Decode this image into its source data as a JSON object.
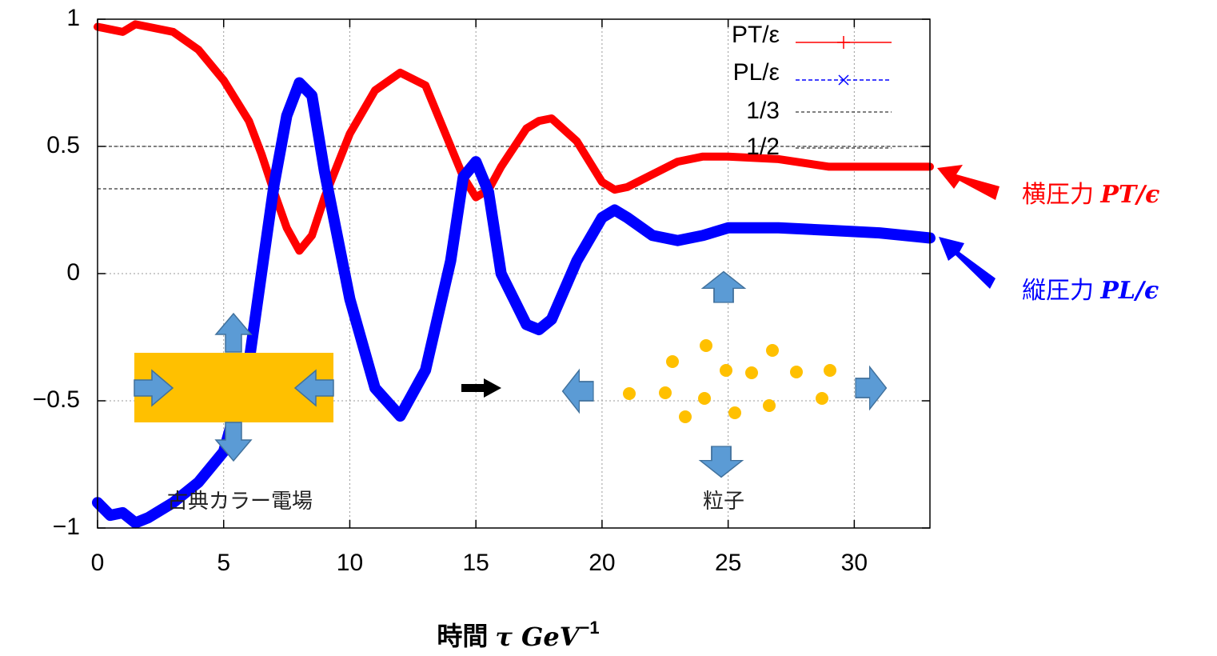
{
  "chart_data": {
    "type": "line",
    "x": [
      0,
      0.5,
      1,
      1.5,
      2,
      3,
      4,
      5,
      6,
      6.5,
      7,
      7.5,
      8,
      8.5,
      9,
      10,
      11,
      12,
      13,
      14,
      14.5,
      15,
      15.5,
      16,
      17,
      17.5,
      18,
      19,
      20,
      20.5,
      21,
      22,
      23,
      24,
      25,
      27,
      29,
      31,
      33
    ],
    "series": [
      {
        "name": "PT/ε",
        "color": "#ff0000",
        "values": [
          0.97,
          0.96,
          0.95,
          0.98,
          0.97,
          0.95,
          0.88,
          0.76,
          0.6,
          0.47,
          0.32,
          0.18,
          0.09,
          0.15,
          0.3,
          0.55,
          0.72,
          0.79,
          0.74,
          0.5,
          0.38,
          0.3,
          0.33,
          0.42,
          0.57,
          0.6,
          0.61,
          0.52,
          0.36,
          0.33,
          0.34,
          0.39,
          0.44,
          0.46,
          0.46,
          0.45,
          0.42,
          0.42,
          0.42
        ]
      },
      {
        "name": "PL/ε",
        "color": "#0000ff",
        "values": [
          -0.9,
          -0.95,
          -0.94,
          -0.98,
          -0.96,
          -0.9,
          -0.82,
          -0.7,
          -0.35,
          0.0,
          0.35,
          0.62,
          0.75,
          0.7,
          0.4,
          -0.1,
          -0.45,
          -0.56,
          -0.38,
          0.05,
          0.38,
          0.44,
          0.32,
          0.0,
          -0.2,
          -0.22,
          -0.18,
          0.05,
          0.22,
          0.25,
          0.22,
          0.15,
          0.13,
          0.15,
          0.18,
          0.18,
          0.17,
          0.16,
          0.14
        ]
      }
    ],
    "reference_lines": [
      {
        "name": "1/3",
        "value": 0.3333
      },
      {
        "name": "1/2",
        "value": 0.5
      }
    ],
    "xlim": [
      0,
      33
    ],
    "xticks": [
      0,
      5,
      10,
      15,
      20,
      25,
      30
    ],
    "ylim": [
      -1,
      1
    ],
    "yticks": [
      {
        "value": -1,
        "label": "−1"
      },
      {
        "value": -0.5,
        "label": "−0.5"
      },
      0,
      0.5,
      1
    ],
    "grid": true,
    "x_label": {
      "text": "時間",
      "symbol": "τ GeV",
      "exponent": "−1"
    },
    "annotations": [
      {
        "text": "横圧力",
        "symbol": "PT/ϵ",
        "color": "#ff0000"
      },
      {
        "text": "縦圧力",
        "symbol": "PL/ϵ",
        "color": "#0000ff"
      },
      {
        "text": "古典カラー電場"
      },
      {
        "text": "粒子"
      }
    ]
  }
}
